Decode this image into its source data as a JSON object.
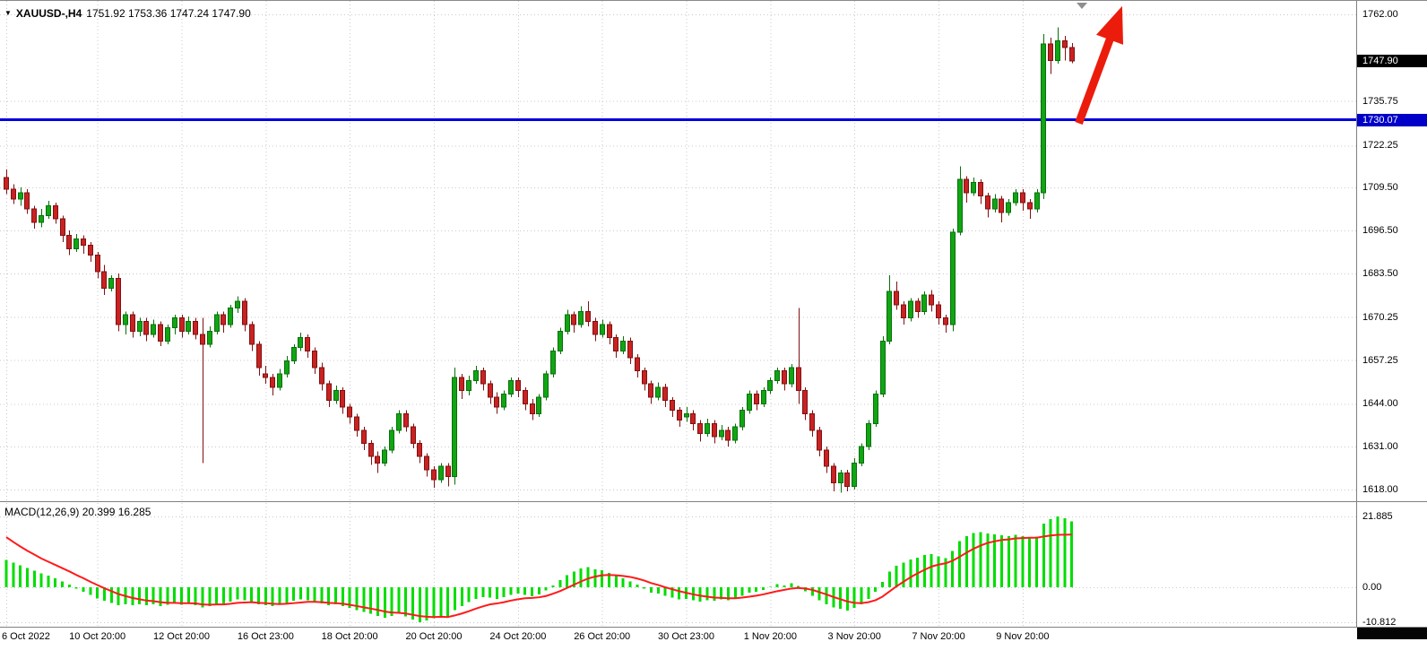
{
  "title": {
    "expander_icon": "▼",
    "symbol": "XAUUSD-,H4",
    "ohlc_text": "1751.92 1753.36 1747.24 1747.90"
  },
  "price_axis": {
    "current": "1747.90",
    "hline": "1730.07"
  },
  "macd_panel": {
    "label": "MACD(12,26,9) 20.399 16.285",
    "axis_values": [
      "21.885",
      "0.00",
      "-10.812"
    ]
  },
  "colors": {
    "bull_body": "#11a514",
    "bull_edge": "#07700a",
    "bear_body": "#c92222",
    "bear_edge": "#801010",
    "macd_hist": "#00dd00",
    "macd_signal": "#ff1a1a",
    "grid": "#c9c9d2",
    "hline": "#0000e0",
    "arrow": "#ec1c0c",
    "badge_current_bg": "#000000",
    "badge_hline_bg": "#0000c8"
  },
  "chart_data": {
    "type": "candlestick",
    "symbol": "XAUUSD-",
    "timeframe": "H4",
    "ohlc_current": {
      "open": 1751.92,
      "high": 1753.36,
      "low": 1747.24,
      "close": 1747.9
    },
    "current_price": 1747.9,
    "ylim": [
      1618.0,
      1762.0
    ],
    "grid": true,
    "price_ticks": [
      1762.0,
      1735.75,
      1722.25,
      1709.5,
      1696.5,
      1683.5,
      1670.25,
      1657.25,
      1644.0,
      1631.0,
      1618.0
    ],
    "time_labels": [
      {
        "text": "6 Oct 2022",
        "bar": 0
      },
      {
        "text": "10 Oct 20:00",
        "bar": 13
      },
      {
        "text": "12 Oct 20:00",
        "bar": 25
      },
      {
        "text": "16 Oct 23:00",
        "bar": 37
      },
      {
        "text": "18 Oct 20:00",
        "bar": 49
      },
      {
        "text": "20 Oct 20:00",
        "bar": 61
      },
      {
        "text": "24 Oct 20:00",
        "bar": 73
      },
      {
        "text": "26 Oct 20:00",
        "bar": 85
      },
      {
        "text": "30 Oct 23:00",
        "bar": 97
      },
      {
        "text": "1 Nov 20:00",
        "bar": 109
      },
      {
        "text": "3 Nov 20:00",
        "bar": 121
      },
      {
        "text": "7 Nov 20:00",
        "bar": 133
      },
      {
        "text": "9 Nov 20:00",
        "bar": 145
      }
    ],
    "hline": {
      "price": 1730.07,
      "label": "1730.07"
    },
    "annotations": {
      "arrow": {
        "type": "arrow-up",
        "start_bar": 153,
        "start_price": 1729,
        "end_bar": 159.2,
        "end_price": 1764.5
      }
    },
    "candles": [
      [
        1712.5,
        1715.0,
        1707.5,
        1709.0
      ],
      [
        1709.0,
        1710.5,
        1704.5,
        1706.0
      ],
      [
        1706.0,
        1709.5,
        1704.0,
        1708.0
      ],
      [
        1708.0,
        1709.0,
        1701.5,
        1703.0
      ],
      [
        1703.0,
        1704.0,
        1697.0,
        1699.0
      ],
      [
        1699.0,
        1703.0,
        1697.5,
        1701.0
      ],
      [
        1701.0,
        1705.5,
        1700.0,
        1704.0
      ],
      [
        1704.0,
        1705.0,
        1698.5,
        1700.0
      ],
      [
        1700.0,
        1701.0,
        1693.0,
        1695.0
      ],
      [
        1695.0,
        1696.5,
        1689.0,
        1691.0
      ],
      [
        1691.0,
        1695.5,
        1690.0,
        1694.0
      ],
      [
        1694.0,
        1695.0,
        1689.5,
        1692.0
      ],
      [
        1692.0,
        1693.0,
        1687.0,
        1689.0
      ],
      [
        1689.0,
        1690.0,
        1682.0,
        1684.0
      ],
      [
        1684.0,
        1686.0,
        1677.0,
        1679.0
      ],
      [
        1679.0,
        1683.0,
        1678.0,
        1682.0
      ],
      [
        1682.0,
        1683.5,
        1666.0,
        1668.0
      ],
      [
        1668.0,
        1672.0,
        1665.0,
        1671.0
      ],
      [
        1671.0,
        1672.0,
        1664.0,
        1666.0
      ],
      [
        1666.0,
        1670.0,
        1664.5,
        1669.0
      ],
      [
        1669.0,
        1670.0,
        1663.0,
        1665.0
      ],
      [
        1665.0,
        1669.5,
        1664.0,
        1668.0
      ],
      [
        1668.0,
        1669.0,
        1661.5,
        1663.0
      ],
      [
        1663.0,
        1668.0,
        1662.0,
        1667.0
      ],
      [
        1667.0,
        1671.0,
        1665.0,
        1670.0
      ],
      [
        1670.0,
        1671.0,
        1664.0,
        1666.0
      ],
      [
        1666.0,
        1670.5,
        1665.0,
        1669.0
      ],
      [
        1669.0,
        1670.0,
        1663.5,
        1665.0
      ],
      [
        1665.0,
        1670.0,
        1626.0,
        1662.0
      ],
      [
        1662.0,
        1667.5,
        1661.0,
        1666.0
      ],
      [
        1666.0,
        1672.0,
        1665.0,
        1671.0
      ],
      [
        1671.0,
        1672.0,
        1665.5,
        1668.0
      ],
      [
        1668.0,
        1674.0,
        1667.0,
        1673.0
      ],
      [
        1673.0,
        1676.5,
        1671.5,
        1675.0
      ],
      [
        1675.0,
        1676.0,
        1666.0,
        1668.0
      ],
      [
        1668.0,
        1669.0,
        1660.0,
        1662.0
      ],
      [
        1662.0,
        1663.0,
        1652.5,
        1655.0
      ],
      [
        1653.0,
        1655.5,
        1650.0,
        1652.0
      ],
      [
        1652.0,
        1653.0,
        1646.5,
        1649.0
      ],
      [
        1649.0,
        1654.5,
        1648.0,
        1653.0
      ],
      [
        1653.0,
        1658.5,
        1652.0,
        1657.0
      ],
      [
        1657.0,
        1662.0,
        1656.0,
        1661.0
      ],
      [
        1661.0,
        1665.5,
        1660.0,
        1664.0
      ],
      [
        1664.0,
        1665.0,
        1658.0,
        1660.0
      ],
      [
        1660.0,
        1661.0,
        1653.0,
        1655.0
      ],
      [
        1655.0,
        1656.5,
        1648.0,
        1650.0
      ],
      [
        1650.0,
        1651.0,
        1643.0,
        1645.0
      ],
      [
        1645.0,
        1649.5,
        1644.0,
        1648.0
      ],
      [
        1648.0,
        1649.0,
        1641.0,
        1643.0
      ],
      [
        1643.0,
        1644.0,
        1638.0,
        1640.0
      ],
      [
        1640.0,
        1641.0,
        1634.0,
        1636.0
      ],
      [
        1636.0,
        1637.0,
        1630.0,
        1632.0
      ],
      [
        1632.0,
        1633.0,
        1625.5,
        1628.0
      ],
      [
        1628.0,
        1629.5,
        1623.0,
        1626.0
      ],
      [
        1626.0,
        1631.0,
        1625.0,
        1630.0
      ],
      [
        1630.0,
        1637.0,
        1629.0,
        1636.0
      ],
      [
        1636.0,
        1642.0,
        1635.0,
        1641.0
      ],
      [
        1641.0,
        1642.0,
        1635.5,
        1637.0
      ],
      [
        1637.0,
        1638.0,
        1630.5,
        1632.0
      ],
      [
        1632.0,
        1633.0,
        1626.0,
        1628.0
      ],
      [
        1628.0,
        1629.0,
        1622.0,
        1624.0
      ],
      [
        1624.0,
        1625.0,
        1618.5,
        1621.0
      ],
      [
        1621.0,
        1626.0,
        1620.0,
        1625.0
      ],
      [
        1625.0,
        1626.0,
        1619.0,
        1622.0
      ],
      [
        1622.0,
        1655.0,
        1619.5,
        1652.0
      ],
      [
        1652.0,
        1653.0,
        1645.5,
        1648.0
      ],
      [
        1648.0,
        1652.5,
        1646.5,
        1651.0
      ],
      [
        1651.0,
        1655.5,
        1650.0,
        1654.0
      ],
      [
        1654.0,
        1655.0,
        1648.0,
        1650.0
      ],
      [
        1650.0,
        1651.0,
        1644.0,
        1646.0
      ],
      [
        1646.0,
        1647.5,
        1641.0,
        1643.0
      ],
      [
        1643.0,
        1648.0,
        1642.0,
        1647.0
      ],
      [
        1647.0,
        1652.0,
        1646.0,
        1651.0
      ],
      [
        1651.0,
        1652.0,
        1646.0,
        1648.0
      ],
      [
        1648.0,
        1649.0,
        1642.0,
        1644.0
      ],
      [
        1644.0,
        1645.5,
        1639.0,
        1641.0
      ],
      [
        1641.0,
        1647.0,
        1640.0,
        1646.0
      ],
      [
        1646.0,
        1654.0,
        1645.0,
        1653.0
      ],
      [
        1653.0,
        1661.0,
        1652.0,
        1660.0
      ],
      [
        1660.0,
        1667.0,
        1659.0,
        1666.0
      ],
      [
        1666.0,
        1672.5,
        1665.0,
        1671.0
      ],
      [
        1671.0,
        1672.0,
        1665.5,
        1668.0
      ],
      [
        1668.0,
        1673.5,
        1667.0,
        1672.0
      ],
      [
        1672.0,
        1675.0,
        1667.5,
        1669.0
      ],
      [
        1669.0,
        1670.0,
        1663.0,
        1665.0
      ],
      [
        1665.0,
        1669.5,
        1664.0,
        1668.0
      ],
      [
        1668.0,
        1669.0,
        1662.0,
        1664.0
      ],
      [
        1664.0,
        1665.0,
        1658.0,
        1660.0
      ],
      [
        1660.0,
        1664.5,
        1659.0,
        1663.0
      ],
      [
        1663.0,
        1664.0,
        1656.0,
        1658.0
      ],
      [
        1658.0,
        1659.0,
        1652.0,
        1654.0
      ],
      [
        1654.0,
        1655.0,
        1648.0,
        1650.0
      ],
      [
        1650.0,
        1651.0,
        1644.0,
        1646.0
      ],
      [
        1646.0,
        1650.5,
        1645.0,
        1649.0
      ],
      [
        1649.0,
        1650.0,
        1643.0,
        1645.0
      ],
      [
        1645.0,
        1646.0,
        1640.0,
        1642.0
      ],
      [
        1642.0,
        1643.0,
        1637.0,
        1639.0
      ],
      [
        1640.0,
        1643.0,
        1638.5,
        1641.0
      ],
      [
        1641.0,
        1642.0,
        1636.0,
        1638.0
      ],
      [
        1638.0,
        1639.0,
        1632.5,
        1635.0
      ],
      [
        1635.0,
        1639.5,
        1634.0,
        1638.0
      ],
      [
        1638.0,
        1639.0,
        1632.0,
        1634.0
      ],
      [
        1634.0,
        1637.5,
        1633.0,
        1636.0
      ],
      [
        1636.0,
        1637.0,
        1631.0,
        1633.0
      ],
      [
        1633.0,
        1638.0,
        1632.0,
        1637.0
      ],
      [
        1637.0,
        1643.0,
        1636.0,
        1642.0
      ],
      [
        1642.0,
        1648.0,
        1641.0,
        1647.0
      ],
      [
        1647.0,
        1648.0,
        1642.0,
        1644.0
      ],
      [
        1644.0,
        1649.0,
        1643.0,
        1648.0
      ],
      [
        1648.0,
        1652.0,
        1647.0,
        1651.0
      ],
      [
        1651.0,
        1655.0,
        1650.0,
        1654.0
      ],
      [
        1654.0,
        1655.0,
        1648.0,
        1650.0
      ],
      [
        1650.0,
        1656.0,
        1649.0,
        1655.0
      ],
      [
        1655.0,
        1673.0,
        1644.0,
        1648.0
      ],
      [
        1648.0,
        1649.0,
        1639.0,
        1641.0
      ],
      [
        1641.0,
        1642.0,
        1634.0,
        1636.0
      ],
      [
        1636.0,
        1637.0,
        1628.0,
        1630.0
      ],
      [
        1630.0,
        1631.0,
        1623.0,
        1625.0
      ],
      [
        1625.0,
        1626.0,
        1617.5,
        1620.0
      ],
      [
        1620.0,
        1624.0,
        1617.0,
        1623.0
      ],
      [
        1623.0,
        1624.0,
        1617.5,
        1619.0
      ],
      [
        1619.0,
        1627.5,
        1618.0,
        1626.0
      ],
      [
        1626.0,
        1632.0,
        1625.0,
        1631.0
      ],
      [
        1631.0,
        1639.0,
        1630.0,
        1638.0
      ],
      [
        1638.0,
        1648.0,
        1637.0,
        1647.0
      ],
      [
        1647.0,
        1664.5,
        1646.0,
        1663.0
      ],
      [
        1663.0,
        1683.0,
        1662.0,
        1678.0
      ],
      [
        1678.0,
        1681.0,
        1672.5,
        1674.0
      ],
      [
        1674.0,
        1675.0,
        1668.0,
        1670.0
      ],
      [
        1670.0,
        1676.0,
        1669.0,
        1675.0
      ],
      [
        1675.0,
        1676.0,
        1670.0,
        1672.0
      ],
      [
        1672.0,
        1678.0,
        1671.0,
        1677.0
      ],
      [
        1677.0,
        1678.5,
        1672.0,
        1674.0
      ],
      [
        1674.0,
        1675.0,
        1668.0,
        1670.0
      ],
      [
        1670.0,
        1671.0,
        1665.5,
        1668.0
      ],
      [
        1668.0,
        1697.0,
        1666.0,
        1696.0
      ],
      [
        1696.0,
        1716.0,
        1695.0,
        1712.0
      ],
      [
        1712.0,
        1713.0,
        1705.0,
        1708.0
      ],
      [
        1708.0,
        1712.5,
        1707.0,
        1711.0
      ],
      [
        1711.0,
        1712.0,
        1704.5,
        1707.0
      ],
      [
        1707.0,
        1708.0,
        1700.5,
        1703.0
      ],
      [
        1703.0,
        1707.5,
        1702.0,
        1706.0
      ],
      [
        1706.0,
        1707.0,
        1699.0,
        1702.0
      ],
      [
        1702.0,
        1706.0,
        1701.0,
        1705.0
      ],
      [
        1705.0,
        1709.0,
        1704.0,
        1708.0
      ],
      [
        1708.0,
        1709.0,
        1702.5,
        1705.0
      ],
      [
        1705.0,
        1706.0,
        1700.0,
        1703.0
      ],
      [
        1703.0,
        1709.0,
        1702.0,
        1708.0
      ],
      [
        1708.0,
        1756.0,
        1706.0,
        1753.0
      ],
      [
        1753.0,
        1755.0,
        1744.0,
        1748.0
      ],
      [
        1748.0,
        1758.0,
        1747.0,
        1754.0
      ],
      [
        1754.0,
        1755.5,
        1748.0,
        1752.0
      ],
      [
        1751.92,
        1753.36,
        1747.24,
        1747.9
      ]
    ],
    "macd": {
      "params": "12,26,9",
      "main_value": 20.399,
      "signal_value": 16.285,
      "axis_levels": [
        21.885,
        0,
        -10.812
      ],
      "histogram": [
        8.5,
        7.6,
        6.8,
        6.0,
        5.1,
        4.3,
        3.6,
        2.8,
        1.8,
        0.8,
        -0.4,
        -1.4,
        -2.4,
        -3.4,
        -4.2,
        -4.8,
        -5.6,
        -5.2,
        -5.6,
        -5.2,
        -5.6,
        -5.2,
        -5.8,
        -5.4,
        -5.0,
        -5.4,
        -5.0,
        -5.5,
        -6.2,
        -5.8,
        -5.2,
        -5.0,
        -4.4,
        -3.8,
        -4.0,
        -4.6,
        -5.2,
        -5.6,
        -5.8,
        -5.4,
        -4.8,
        -4.2,
        -3.8,
        -4.0,
        -4.4,
        -5.0,
        -5.6,
        -5.2,
        -5.8,
        -6.4,
        -7.0,
        -7.6,
        -8.2,
        -8.8,
        -9.4,
        -8.8,
        -8.2,
        -9.0,
        -10.0,
        -10.812,
        -10.2,
        -9.6,
        -8.8,
        -9.4,
        -7.0,
        -5.8,
        -4.6,
        -3.6,
        -3.0,
        -3.2,
        -3.6,
        -3.0,
        -2.4,
        -2.0,
        -2.4,
        -2.8,
        -2.2,
        -1.0,
        0.6,
        2.2,
        3.8,
        4.8,
        5.8,
        6.2,
        5.6,
        5.2,
        4.4,
        3.4,
        2.8,
        1.8,
        0.8,
        -0.4,
        -1.6,
        -2.0,
        -2.6,
        -3.2,
        -3.8,
        -3.6,
        -4.0,
        -4.4,
        -4.0,
        -4.2,
        -3.8,
        -4.0,
        -3.4,
        -2.6,
        -1.6,
        -1.4,
        -0.8,
        0.2,
        1.0,
        0.6,
        1.2,
        0.4,
        -1.2,
        -2.6,
        -4.0,
        -5.2,
        -6.2,
        -6.6,
        -7.2,
        -6.4,
        -5.2,
        -3.6,
        -1.4,
        1.6,
        4.8,
        6.6,
        7.6,
        8.6,
        9.2,
        10.0,
        10.2,
        9.6,
        9.0,
        11.2,
        14.2,
        15.8,
        16.8,
        17.0,
        16.6,
        16.4,
        16.0,
        15.8,
        16.2,
        15.8,
        15.4,
        15.6,
        19.6,
        21.0,
        21.885,
        21.3,
        20.399
      ],
      "signal": [
        15.5,
        14.0,
        12.6,
        11.3,
        10.1,
        8.9,
        7.9,
        6.9,
        5.9,
        4.9,
        3.8,
        2.8,
        1.7,
        0.7,
        -0.3,
        -1.2,
        -2.1,
        -2.7,
        -3.3,
        -3.7,
        -4.1,
        -4.3,
        -4.6,
        -4.8,
        -4.8,
        -4.9,
        -4.9,
        -5.0,
        -5.3,
        -5.4,
        -5.3,
        -5.3,
        -5.1,
        -4.8,
        -4.7,
        -4.6,
        -4.8,
        -4.9,
        -5.1,
        -5.2,
        -5.1,
        -4.9,
        -4.7,
        -4.5,
        -4.5,
        -4.6,
        -4.8,
        -4.9,
        -5.1,
        -5.4,
        -5.8,
        -6.2,
        -6.6,
        -7.0,
        -7.5,
        -7.8,
        -7.9,
        -8.1,
        -8.5,
        -8.9,
        -9.1,
        -9.2,
        -9.1,
        -9.2,
        -8.7,
        -8.1,
        -7.4,
        -6.6,
        -5.9,
        -5.3,
        -5.0,
        -4.6,
        -4.1,
        -3.7,
        -3.4,
        -3.3,
        -3.1,
        -2.7,
        -2.0,
        -1.2,
        -0.2,
        0.8,
        1.8,
        2.7,
        3.3,
        3.7,
        3.8,
        3.7,
        3.5,
        3.2,
        2.7,
        2.1,
        1.3,
        0.7,
        0.0,
        -0.6,
        -1.2,
        -1.7,
        -2.2,
        -2.6,
        -2.9,
        -3.2,
        -3.3,
        -3.4,
        -3.4,
        -3.2,
        -2.9,
        -2.6,
        -2.2,
        -1.7,
        -1.2,
        -0.8,
        -0.4,
        -0.2,
        -0.4,
        -0.8,
        -1.5,
        -2.2,
        -3.0,
        -3.7,
        -4.4,
        -4.8,
        -4.9,
        -4.6,
        -4.0,
        -2.9,
        -1.3,
        0.3,
        1.7,
        3.1,
        4.3,
        5.4,
        6.4,
        7.0,
        7.4,
        8.2,
        9.4,
        10.7,
        11.9,
        12.9,
        13.7,
        14.2,
        14.6,
        14.8,
        15.1,
        15.2,
        15.3,
        15.3,
        15.7,
        16.0,
        16.2,
        16.25,
        16.285
      ]
    }
  }
}
